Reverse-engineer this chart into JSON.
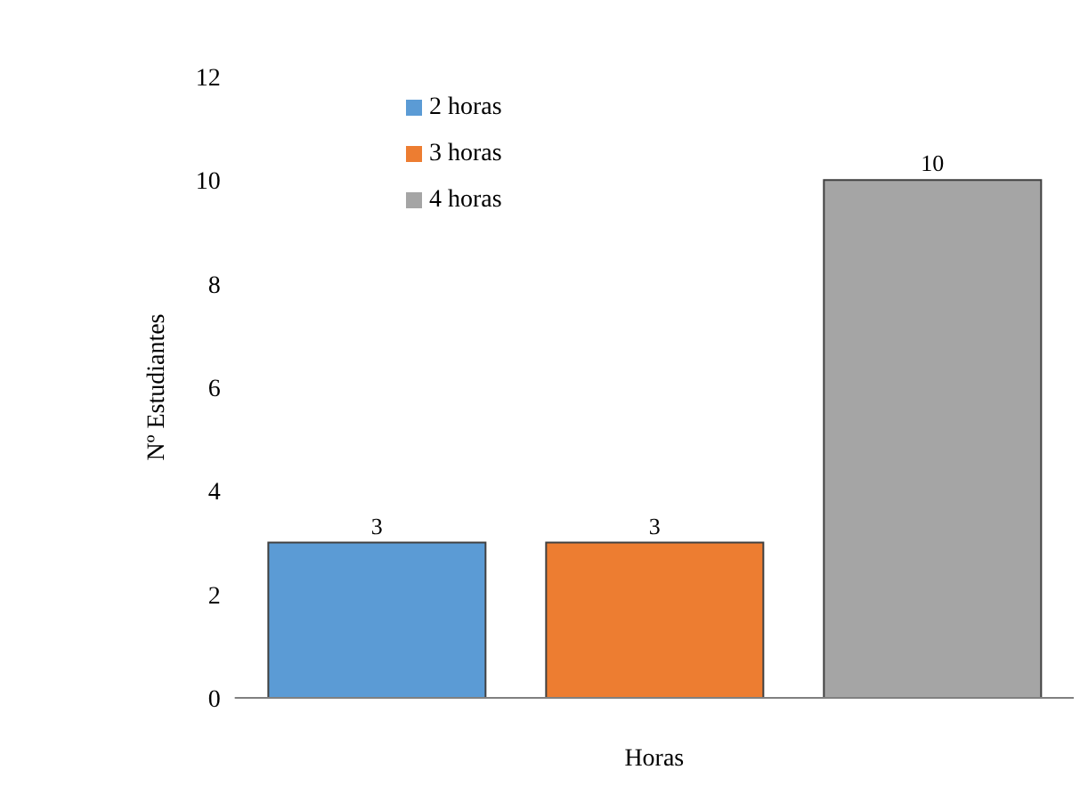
{
  "chart_data": {
    "type": "bar",
    "xlabel": "Horas",
    "ylabel": "Nº Estudiantes",
    "categories": [
      null
    ],
    "series": [
      {
        "name": "2 horas",
        "color": "#5b9bd5",
        "values": [
          3
        ]
      },
      {
        "name": "3 horas",
        "color": "#ed7d31",
        "values": [
          3
        ]
      },
      {
        "name": "4 horas",
        "color": "#a5a5a5",
        "values": [
          10
        ]
      }
    ],
    "ylim": [
      0,
      12
    ],
    "yticks": [
      0,
      2,
      4,
      6,
      8,
      10,
      12
    ],
    "data_labels": true,
    "legend": "top",
    "grid": false
  }
}
